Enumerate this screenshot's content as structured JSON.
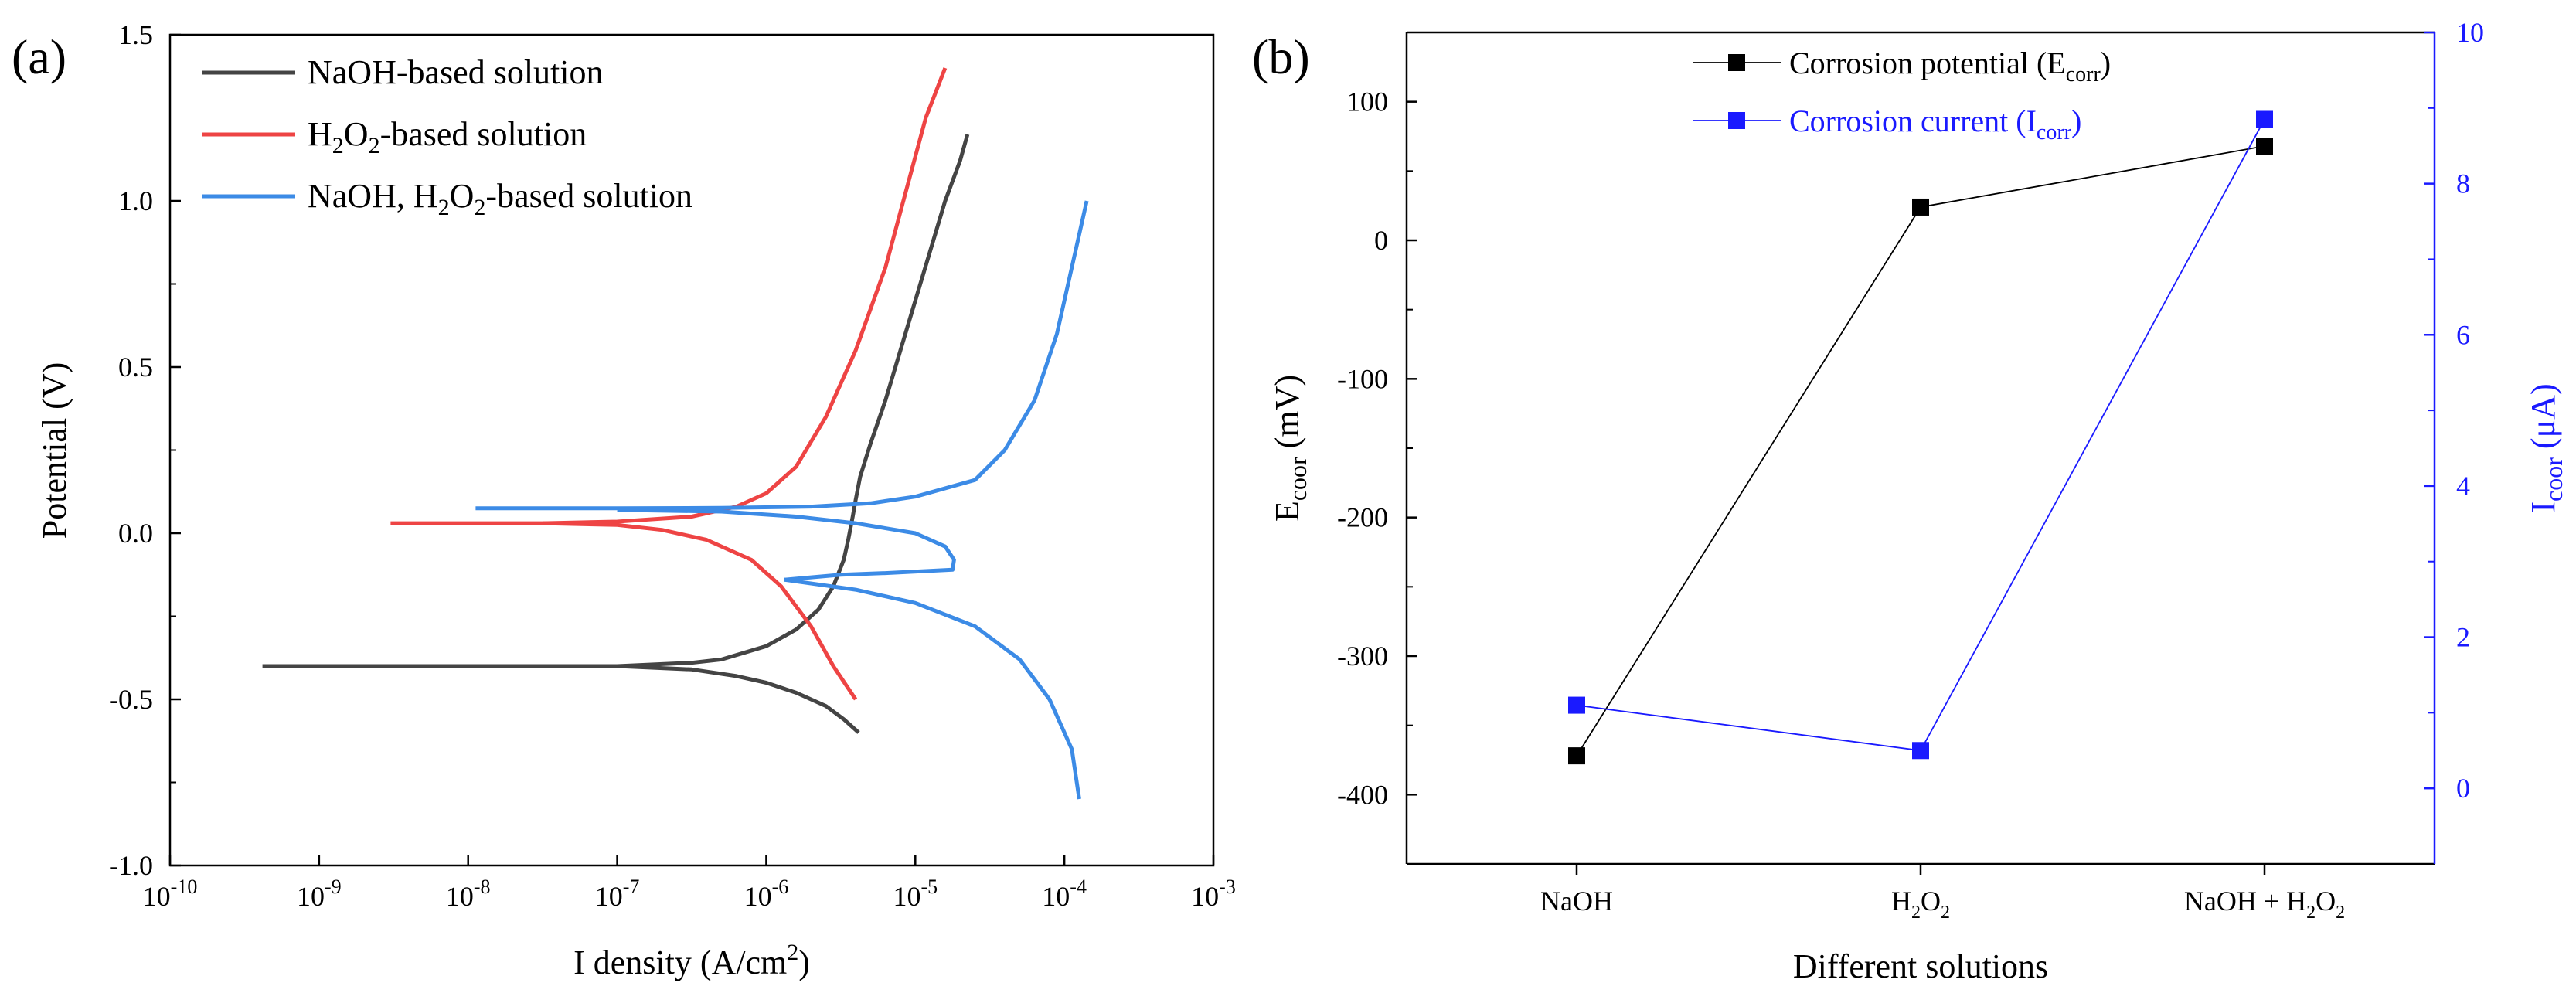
{
  "chart_data": [
    {
      "type": "line",
      "panel_label": "(a)",
      "xlabel": "I density (A/cm",
      "xlabel_sup": "2",
      "xlabel_close": ")",
      "ylabel": "Potential (V)",
      "xscale": "log",
      "xlim": [
        1e-10,
        0.001
      ],
      "ylim": [
        -1.0,
        1.5
      ],
      "yticks": [
        "-1.0",
        "-0.5",
        "0.0",
        "0.5",
        "1.0",
        "1.5"
      ],
      "ytick_values": [
        -1.0,
        -0.5,
        0.0,
        0.5,
        1.0,
        1.5
      ],
      "xticks": [
        {
          "base": "10",
          "exp": "-10"
        },
        {
          "base": "10",
          "exp": "-9"
        },
        {
          "base": "10",
          "exp": "-8"
        },
        {
          "base": "10",
          "exp": "-7"
        },
        {
          "base": "10",
          "exp": "-6"
        },
        {
          "base": "10",
          "exp": "-5"
        },
        {
          "base": "10",
          "exp": "-4"
        },
        {
          "base": "10",
          "exp": "-3"
        }
      ],
      "xtick_values": [
        -10,
        -9,
        -8,
        -7,
        -6,
        -5,
        -4,
        -3
      ],
      "legend_position": "top-left",
      "series": [
        {
          "name": "NaOH-based solution",
          "color": "#444444",
          "branches": [
            [
              [
                -9.38,
                -0.4
              ],
              [
                -8.5,
                -0.4
              ],
              [
                -7.5,
                -0.4
              ],
              [
                -7.0,
                -0.4
              ],
              [
                -6.5,
                -0.39
              ],
              [
                -6.3,
                -0.38
              ],
              [
                -6.15,
                -0.36
              ],
              [
                -6.0,
                -0.34
              ],
              [
                -5.8,
                -0.29
              ],
              [
                -5.65,
                -0.23
              ],
              [
                -5.55,
                -0.16
              ],
              [
                -5.48,
                -0.08
              ],
              [
                -5.45,
                -0.02
              ],
              [
                -5.42,
                0.05
              ],
              [
                -5.4,
                0.1
              ],
              [
                -5.37,
                0.17
              ],
              [
                -5.3,
                0.27
              ],
              [
                -5.2,
                0.4
              ],
              [
                -5.1,
                0.55
              ],
              [
                -5.0,
                0.7
              ],
              [
                -4.9,
                0.85
              ],
              [
                -4.8,
                1.0
              ],
              [
                -4.7,
                1.12
              ],
              [
                -4.65,
                1.2
              ]
            ],
            [
              [
                -7.0,
                -0.4
              ],
              [
                -6.5,
                -0.41
              ],
              [
                -6.2,
                -0.43
              ],
              [
                -6.0,
                -0.45
              ],
              [
                -5.8,
                -0.48
              ],
              [
                -5.6,
                -0.52
              ],
              [
                -5.48,
                -0.56
              ],
              [
                -5.38,
                -0.6
              ]
            ]
          ]
        },
        {
          "name": "H2O2-based solution",
          "color": "#ee4444",
          "branches": [
            [
              [
                -8.52,
                0.03
              ],
              [
                -7.5,
                0.03
              ],
              [
                -7.0,
                0.035
              ],
              [
                -6.5,
                0.05
              ],
              [
                -6.2,
                0.08
              ],
              [
                -6.0,
                0.12
              ],
              [
                -5.8,
                0.2
              ],
              [
                -5.6,
                0.35
              ],
              [
                -5.4,
                0.55
              ],
              [
                -5.2,
                0.8
              ],
              [
                -5.05,
                1.05
              ],
              [
                -4.93,
                1.25
              ],
              [
                -4.8,
                1.4
              ]
            ],
            [
              [
                -7.5,
                0.03
              ],
              [
                -7.0,
                0.025
              ],
              [
                -6.7,
                0.01
              ],
              [
                -6.4,
                -0.02
              ],
              [
                -6.1,
                -0.08
              ],
              [
                -5.9,
                -0.16
              ],
              [
                -5.7,
                -0.28
              ],
              [
                -5.55,
                -0.4
              ],
              [
                -5.4,
                -0.5
              ]
            ]
          ]
        },
        {
          "name": "NaOH, H2O2-based solution",
          "color": "#3c8be6",
          "branches": [
            [
              [
                -7.95,
                0.075
              ],
              [
                -7.0,
                0.075
              ],
              [
                -6.3,
                0.076
              ],
              [
                -5.7,
                0.08
              ],
              [
                -5.3,
                0.09
              ],
              [
                -5.0,
                0.11
              ],
              [
                -4.6,
                0.16
              ],
              [
                -4.4,
                0.25
              ],
              [
                -4.2,
                0.4
              ],
              [
                -4.05,
                0.6
              ],
              [
                -3.95,
                0.8
              ],
              [
                -3.85,
                1.0
              ]
            ],
            [
              [
                -7.0,
                0.07
              ],
              [
                -6.3,
                0.065
              ],
              [
                -5.8,
                0.05
              ],
              [
                -5.4,
                0.03
              ],
              [
                -5.0,
                0.0
              ],
              [
                -4.8,
                -0.04
              ],
              [
                -4.74,
                -0.08
              ],
              [
                -4.75,
                -0.11
              ],
              [
                -5.2,
                -0.12
              ],
              [
                -5.5,
                -0.125
              ],
              [
                -5.75,
                -0.135
              ],
              [
                -5.88,
                -0.14
              ]
            ],
            [
              [
                -5.88,
                -0.14
              ],
              [
                -5.4,
                -0.17
              ],
              [
                -5.0,
                -0.21
              ],
              [
                -4.6,
                -0.28
              ],
              [
                -4.3,
                -0.38
              ],
              [
                -4.1,
                -0.5
              ],
              [
                -3.95,
                -0.65
              ],
              [
                -3.9,
                -0.8
              ]
            ]
          ]
        }
      ],
      "legend": [
        {
          "parts": [
            {
              "t": "NaOH-based solution"
            }
          ]
        },
        {
          "parts": [
            {
              "t": "H"
            },
            {
              "t": "2",
              "sub": true
            },
            {
              "t": "O"
            },
            {
              "t": "2",
              "sub": true
            },
            {
              "t": "-based solution"
            }
          ]
        },
        {
          "parts": [
            {
              "t": "NaOH, H"
            },
            {
              "t": "2",
              "sub": true
            },
            {
              "t": "O"
            },
            {
              "t": "2",
              "sub": true
            },
            {
              "t": "-based solution"
            }
          ]
        }
      ]
    },
    {
      "type": "line",
      "panel_label": "(b)",
      "xlabel": "Different solutions",
      "categories": [
        {
          "parts": [
            {
              "t": "NaOH"
            }
          ]
        },
        {
          "parts": [
            {
              "t": "H"
            },
            {
              "t": "2",
              "sub": true
            },
            {
              "t": "O"
            },
            {
              "t": "2",
              "sub": true
            }
          ]
        },
        {
          "parts": [
            {
              "t": "NaOH + H"
            },
            {
              "t": "2",
              "sub": true
            },
            {
              "t": "O"
            },
            {
              "t": "2",
              "sub": true
            }
          ]
        }
      ],
      "ylabel_left": {
        "main": "E",
        "sub": "coor",
        "rest": " (mV)"
      },
      "ylabel_right": {
        "main": "I",
        "sub": "coor",
        "rest": " (μA)"
      },
      "ylim_left": [
        -450,
        150
      ],
      "yticks_left": [
        "-400",
        "-300",
        "-200",
        "-100",
        "0",
        "100"
      ],
      "ytick_values_left": [
        -400,
        -300,
        -200,
        -100,
        0,
        100
      ],
      "ylim_right": [
        -1,
        10
      ],
      "yticks_right": [
        "0",
        "2",
        "4",
        "6",
        "8",
        "10"
      ],
      "ytick_values_right": [
        0,
        2,
        4,
        6,
        8,
        10
      ],
      "legend_position": "top-center",
      "series": [
        {
          "name": "Corrosion potential (Ecorr)",
          "axis": "left",
          "color": "#000000",
          "values": [
            -372,
            24,
            68
          ],
          "legend_parts": [
            {
              "t": "Corrosion potential (E"
            },
            {
              "t": "corr",
              "sub": true
            },
            {
              "t": ")"
            }
          ]
        },
        {
          "name": "Corrosion current (Icorr)",
          "axis": "right",
          "color": "#1a1aff",
          "values": [
            1.1,
            0.5,
            8.85
          ],
          "legend_parts": [
            {
              "t": "Corrosion current (I"
            },
            {
              "t": "corr",
              "sub": true
            },
            {
              "t": ")"
            }
          ]
        }
      ]
    }
  ]
}
